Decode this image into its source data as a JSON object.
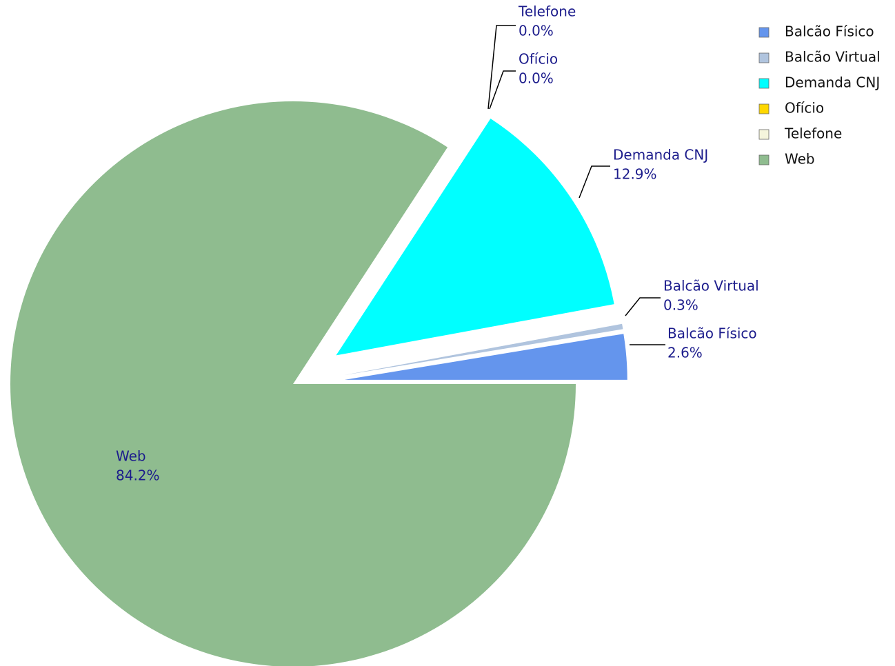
{
  "chart_data": {
    "type": "pie",
    "categories": [
      "Balcão Físico",
      "Balcão Virtual",
      "Demanda CNJ",
      "Ofício",
      "Telefone",
      "Web"
    ],
    "values": [
      2.6,
      0.3,
      12.9,
      0.0,
      0.0,
      84.2
    ],
    "value_labels": [
      "2.6%",
      "0.3%",
      "12.9%",
      "0.0%",
      "0.0%",
      "84.2%"
    ],
    "colors": [
      "#6495ed",
      "#b0c4de",
      "#00ffff",
      "#ffd700",
      "#f5f5dc",
      "#8fbc8f"
    ],
    "legend": "upper right"
  }
}
